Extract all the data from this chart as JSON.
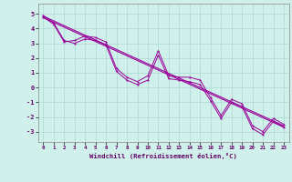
{
  "xlabel": "Windchill (Refroidissement éolien,°C)",
  "background_color": "#cff0eb",
  "grid_color": "#aad8d0",
  "line_color": "#990099",
  "xlim": [
    -0.5,
    23.5
  ],
  "ylim": [
    -3.7,
    5.7
  ],
  "xticks": [
    0,
    1,
    2,
    3,
    4,
    5,
    6,
    7,
    8,
    9,
    10,
    11,
    12,
    13,
    14,
    15,
    16,
    17,
    18,
    19,
    20,
    21,
    22,
    23
  ],
  "yticks": [
    -3,
    -2,
    -1,
    0,
    1,
    2,
    3,
    4,
    5
  ],
  "line1_x": [
    0,
    1,
    2,
    3,
    4,
    5,
    6,
    7,
    8,
    9,
    10,
    11,
    12,
    13,
    14,
    15,
    16,
    17,
    18,
    19,
    20,
    21,
    22,
    23
  ],
  "line1_y": [
    4.8,
    4.3,
    3.1,
    3.2,
    3.5,
    3.4,
    3.1,
    1.3,
    0.7,
    0.4,
    0.8,
    2.5,
    0.8,
    0.7,
    0.7,
    0.5,
    -0.7,
    -1.9,
    -0.8,
    -1.1,
    -2.6,
    -3.0,
    -2.1,
    -2.5
  ],
  "line2_x": [
    0,
    1,
    2,
    3,
    4,
    5,
    6,
    7,
    8,
    9,
    10,
    11,
    12,
    13,
    14,
    15,
    16,
    17,
    18,
    19,
    20,
    21,
    22,
    23
  ],
  "line2_y": [
    4.9,
    4.4,
    3.2,
    3.0,
    3.3,
    3.2,
    2.9,
    1.1,
    0.5,
    0.2,
    0.5,
    2.2,
    0.6,
    0.5,
    0.4,
    0.2,
    -0.9,
    -2.1,
    -1.0,
    -1.3,
    -2.8,
    -3.2,
    -2.3,
    -2.7
  ],
  "line3_x": [
    0,
    23
  ],
  "line3_y": [
    4.85,
    -2.6
  ],
  "line4_x": [
    0,
    23
  ],
  "line4_y": [
    4.75,
    -2.7
  ]
}
